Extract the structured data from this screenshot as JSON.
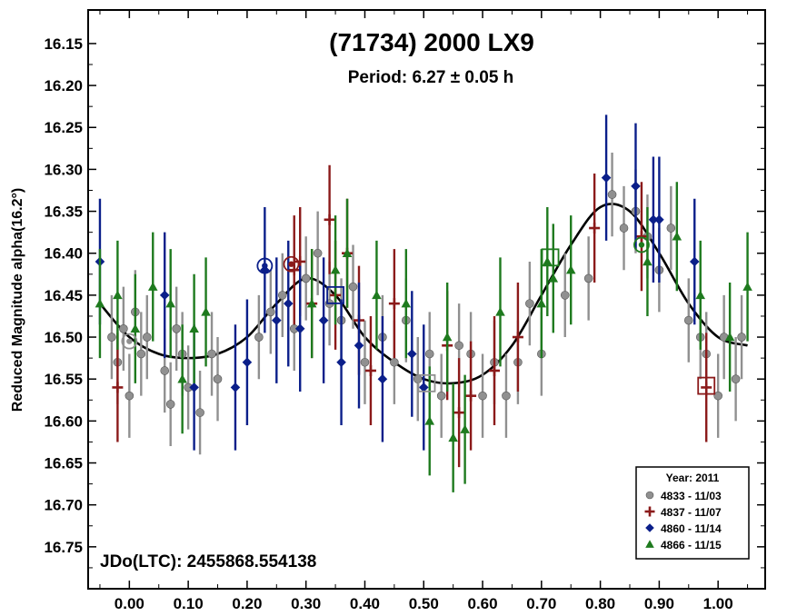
{
  "chart_data": {
    "type": "scatter",
    "title": "(71734) 2000 LX9",
    "subtitle": "Period: 6.27 ± 0.05 h",
    "ylabel": "Reduced Magnitude alpha(16.2°)",
    "annotation": "JDo(LTC): 2455868.554138",
    "xlim": [
      -0.07,
      1.08
    ],
    "ylim": [
      16.8,
      16.11
    ],
    "y_inverted": true,
    "x_ticks": [
      "0.00",
      "0.10",
      "0.20",
      "0.30",
      "0.40",
      "0.50",
      "0.60",
      "0.70",
      "0.80",
      "0.90",
      "1.00"
    ],
    "y_ticks": [
      "16.15",
      "16.20",
      "16.25",
      "16.30",
      "16.35",
      "16.40",
      "16.45",
      "16.50",
      "16.55",
      "16.60",
      "16.65",
      "16.70",
      "16.75"
    ],
    "legend": {
      "title": "Year: 2011",
      "placement": "bottom-right",
      "entries": [
        "4833 - 11/03",
        "4837 - 11/07",
        "4860 - 11/14",
        "4866 - 11/15"
      ]
    },
    "series": [
      {
        "name": "4833 - 11/03",
        "marker": "circle",
        "color": "#909090",
        "error": 0.05,
        "x": [
          -0.03,
          -0.02,
          -0.01,
          0.0,
          0.01,
          0.02,
          0.03,
          0.06,
          0.07,
          0.08,
          0.09,
          0.1,
          0.12,
          0.14,
          0.15,
          0.22,
          0.24,
          0.26,
          0.28,
          0.3,
          0.32,
          0.34,
          0.36,
          0.38,
          0.4,
          0.43,
          0.45,
          0.47,
          0.49,
          0.51,
          0.53,
          0.56,
          0.58,
          0.6,
          0.62,
          0.64,
          0.66,
          0.68,
          0.7,
          0.74,
          0.78,
          0.82,
          0.84,
          0.86,
          0.88,
          0.9,
          0.92,
          0.95,
          0.97,
          0.98,
          1.0,
          1.01,
          1.03,
          1.04
        ],
        "y": [
          16.5,
          16.53,
          16.49,
          16.57,
          16.47,
          16.52,
          16.5,
          16.54,
          16.58,
          16.49,
          16.52,
          16.56,
          16.59,
          16.52,
          16.55,
          16.5,
          16.47,
          16.45,
          16.49,
          16.43,
          16.4,
          16.46,
          16.48,
          16.44,
          16.53,
          16.5,
          16.53,
          16.48,
          16.55,
          16.52,
          16.57,
          16.51,
          16.52,
          16.57,
          16.53,
          16.57,
          16.53,
          16.46,
          16.52,
          16.45,
          16.43,
          16.33,
          16.37,
          16.35,
          16.38,
          16.42,
          16.37,
          16.48,
          16.5,
          16.52,
          16.57,
          16.5,
          16.55,
          16.5
        ]
      },
      {
        "name": "4837 - 11/07",
        "marker": "plus",
        "color": "#8b1a1a",
        "error": 0.065,
        "x": [
          -0.02,
          0.28,
          0.29,
          0.31,
          0.34,
          0.35,
          0.37,
          0.39,
          0.41,
          0.45,
          0.54,
          0.56,
          0.58,
          0.62,
          0.66,
          0.79,
          0.87,
          0.98
        ],
        "y": [
          16.56,
          16.42,
          16.41,
          16.46,
          16.36,
          16.45,
          16.4,
          16.48,
          16.54,
          16.46,
          16.51,
          16.59,
          16.57,
          16.54,
          16.5,
          16.37,
          16.38,
          16.56
        ]
      },
      {
        "name": "4860 - 11/14",
        "marker": "diamond",
        "color": "#0b1f8a",
        "error": 0.075,
        "x": [
          -0.05,
          0.06,
          0.11,
          0.18,
          0.2,
          0.23,
          0.25,
          0.27,
          0.29,
          0.33,
          0.36,
          0.39,
          0.43,
          0.48,
          0.5,
          0.81,
          0.86,
          0.89,
          0.9,
          0.96
        ],
        "y": [
          16.41,
          16.45,
          16.56,
          16.56,
          16.53,
          16.42,
          16.48,
          16.46,
          16.49,
          16.48,
          16.53,
          16.51,
          16.55,
          16.52,
          16.56,
          16.31,
          16.32,
          16.36,
          16.36,
          16.41
        ]
      },
      {
        "name": "4866 - 11/15",
        "marker": "triangle",
        "color": "#1e7a1e",
        "error": 0.065,
        "x": [
          -0.05,
          -0.02,
          0.01,
          0.04,
          0.07,
          0.09,
          0.11,
          0.13,
          0.31,
          0.35,
          0.37,
          0.42,
          0.47,
          0.51,
          0.54,
          0.55,
          0.57,
          0.63,
          0.7,
          0.71,
          0.72,
          0.75,
          0.88,
          0.93,
          0.97,
          1.02,
          1.05
        ],
        "y": [
          16.46,
          16.45,
          16.49,
          16.44,
          16.46,
          16.55,
          16.49,
          16.47,
          16.46,
          16.42,
          16.4,
          16.45,
          16.46,
          16.6,
          16.5,
          16.62,
          16.61,
          16.47,
          16.46,
          16.41,
          16.43,
          16.42,
          16.41,
          16.38,
          16.45,
          16.5,
          16.44
        ]
      }
    ],
    "fit_curve": {
      "color": "#000000",
      "x": [
        -0.05,
        0.0,
        0.05,
        0.1,
        0.15,
        0.2,
        0.25,
        0.3,
        0.35,
        0.4,
        0.45,
        0.5,
        0.55,
        0.6,
        0.65,
        0.7,
        0.75,
        0.8,
        0.85,
        0.9,
        0.95,
        1.0,
        1.05
      ],
      "y": [
        16.46,
        16.5,
        16.52,
        16.525,
        16.52,
        16.5,
        16.46,
        16.43,
        16.45,
        16.5,
        16.53,
        16.55,
        16.555,
        16.545,
        16.51,
        16.45,
        16.39,
        16.345,
        16.35,
        16.4,
        16.46,
        16.5,
        16.51
      ]
    },
    "highlighted_points": [
      {
        "marker": "circle-ring",
        "color": "#0b1f8a",
        "x": 0.23,
        "y": 16.415
      },
      {
        "marker": "circle-ring",
        "color": "#8b1a1a",
        "x": 0.275,
        "y": 16.413
      },
      {
        "marker": "circle-ring",
        "color": "#1e7a1e",
        "x": 0.87,
        "y": 16.39
      },
      {
        "marker": "circle-ring",
        "color": "#909090",
        "x": 0.0,
        "y": 16.505
      },
      {
        "marker": "square-ring",
        "color": "#1e7a1e",
        "x": 0.715,
        "y": 16.405
      },
      {
        "marker": "square-ring",
        "color": "#0b1f8a",
        "x": 0.35,
        "y": 16.45
      },
      {
        "marker": "square-ring",
        "color": "#8b1a1a",
        "x": 0.98,
        "y": 16.558
      },
      {
        "marker": "square-ring",
        "color": "#909090",
        "x": 0.505,
        "y": 16.555
      }
    ]
  }
}
